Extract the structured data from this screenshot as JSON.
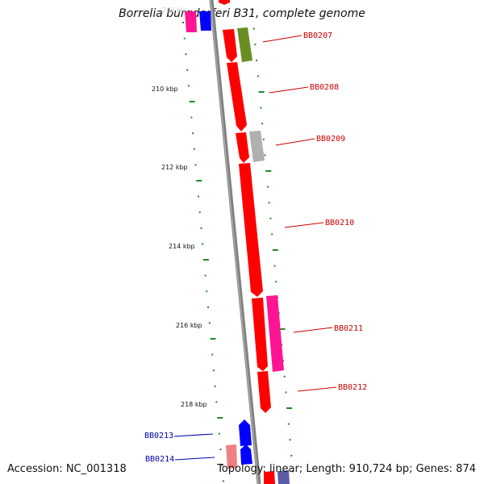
{
  "title": "Borrelia burgdorferi B31, complete genome",
  "accession": "Accession: NC_001318",
  "summary": "Topology: linear; Length: 910,724 bp; Genes: 874",
  "faded_tick_label": "208 kbp",
  "ticks": [
    "210 kbp",
    "212 kbp",
    "214 kbp",
    "216 kbp",
    "218 kbp"
  ],
  "colors": {
    "forward_gene": "#ff0000",
    "forward_label": "#cc0000",
    "reverse_gene": "#0000ff",
    "reverse_label": "#0000aa",
    "pink": "#ff1493",
    "olive": "#6b8e23",
    "gray": "#b0b0b0",
    "salmon": "#f08080",
    "tick": "#228b22",
    "backbone": "#808080"
  },
  "gene_labels": {
    "bb0207": "BB0207",
    "bb0208": "BB0208",
    "bb0209": "BB0209",
    "bb0210": "BB0210",
    "bb0211": "BB0211",
    "bb0212": "BB0212",
    "bb0213": "BB0213",
    "bb0214": "BB0214"
  }
}
